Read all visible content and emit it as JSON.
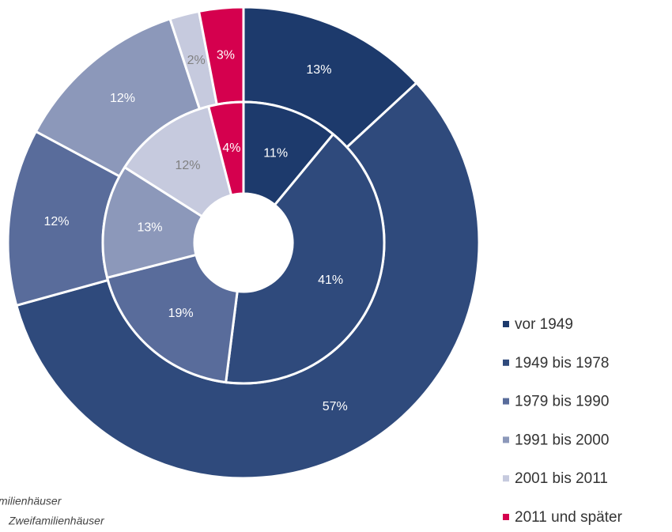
{
  "chart_data": {
    "type": "donut",
    "categories": [
      "vor 1949",
      "1949 bis 1978",
      "1979 bis 1990",
      "1991 bis 2000",
      "2001 bis 2011",
      "2011 und später"
    ],
    "colors": [
      "#1d3a6c",
      "#2f4a7c",
      "#596c9b",
      "#8c98ba",
      "#c6cade",
      "#d5004e"
    ],
    "label_colors": [
      "#ffffff",
      "#ffffff",
      "#ffffff",
      "#ffffff",
      "#808080",
      "#ffffff"
    ],
    "series": [
      {
        "values": [
          13,
          57,
          12,
          12,
          2,
          3
        ],
        "value_labels": [
          "13%",
          "57%",
          "12%",
          "12%",
          "2%",
          "3%"
        ]
      },
      {
        "values": [
          11,
          41,
          19,
          13,
          12,
          4
        ],
        "value_labels": [
          "11%",
          "41%",
          "19%",
          "13%",
          "12%",
          "4%"
        ]
      }
    ],
    "annotations": [
      "milienhäuser",
      "Zweifamilienhäuser"
    ]
  }
}
